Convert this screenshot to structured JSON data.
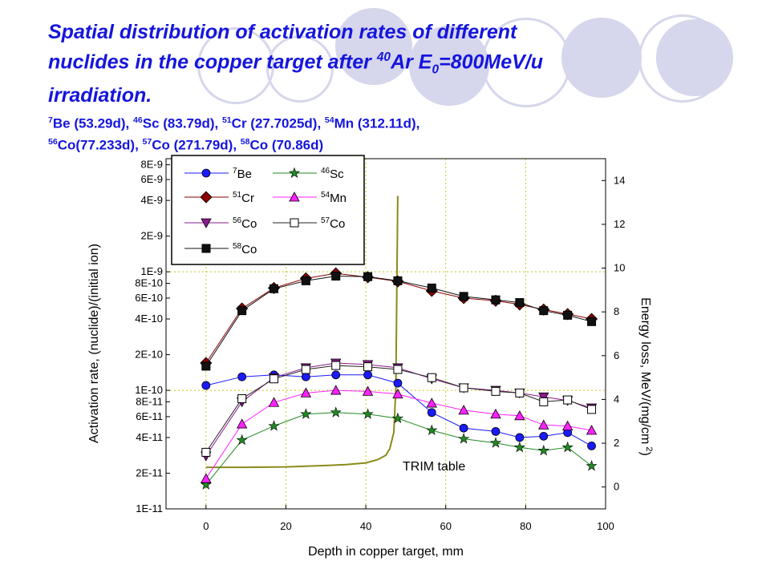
{
  "title": {
    "main_line1": "Spatial distribution of activation rates of different",
    "main_line2_a": "nuclides in the copper target after ",
    "main_line2_sup": "40",
    "main_line2_b": "Ar  E",
    "main_line2_sub": "0",
    "main_line2_c": "=800MeV/u",
    "main_line3": "irradiation.",
    "sub_line1": [
      {
        "sup": "7",
        "text": "Be (53.29d), "
      },
      {
        "sup": "46",
        "text": "Sc (83.79d), "
      },
      {
        "sup": "51",
        "text": "Cr (27.7025d), "
      },
      {
        "sup": "54",
        "text": "Mn (312.11d),"
      }
    ],
    "sub_line2": [
      {
        "sup": "56",
        "text": "Co(77.233d), "
      },
      {
        "sup": "57",
        "text": "Co (271.79d), "
      },
      {
        "sup": "58",
        "text": "Co (70.86d)"
      }
    ]
  },
  "chart_data": {
    "type": "scatter",
    "xlabel": "Depth in copper target, mm",
    "ylabel": "Activation rate, (nuclide)/(initial ion)",
    "y2label": "Energy loss, MeV/(mg/cm",
    "y2label_sup": "2",
    "y2label_end": ")",
    "xlim": [
      -10,
      100
    ],
    "ylim": [
      1e-11,
      9e-09
    ],
    "y_scale": "log",
    "y2lim": [
      -1,
      15
    ],
    "grid": true,
    "legend_position": "top-left",
    "x_ticks": [
      0,
      20,
      40,
      60,
      80,
      100
    ],
    "y_ticks": [
      {
        "v": 1e-11,
        "label": "1E-11"
      },
      {
        "v": 2e-11,
        "label": "2E-11"
      },
      {
        "v": 4e-11,
        "label": "4E-11"
      },
      {
        "v": 6e-11,
        "label": "6E-11"
      },
      {
        "v": 8e-11,
        "label": "8E-11"
      },
      {
        "v": 1e-10,
        "label": "1E-10"
      },
      {
        "v": 2e-10,
        "label": "2E-10"
      },
      {
        "v": 4e-10,
        "label": "4E-10"
      },
      {
        "v": 6e-10,
        "label": "6E-10"
      },
      {
        "v": 8e-10,
        "label": "8E-10"
      },
      {
        "v": 1e-09,
        "label": "1E-9"
      },
      {
        "v": 2e-09,
        "label": "2E-9"
      },
      {
        "v": 4e-09,
        "label": "4E-9"
      },
      {
        "v": 6e-09,
        "label": "6E-9"
      },
      {
        "v": 8e-09,
        "label": "8E-9"
      }
    ],
    "y2_ticks": [
      0,
      2,
      4,
      6,
      8,
      10,
      12,
      14
    ],
    "annotation": "TRIM table",
    "trim_curve": {
      "name": "TRIM table",
      "color": "#8b8b1a",
      "x": [
        0,
        10,
        20,
        30,
        35,
        40,
        43,
        45,
        46,
        47,
        47.5,
        48
      ],
      "y": [
        0.9,
        0.9,
        0.92,
        0.98,
        1.02,
        1.1,
        1.25,
        1.45,
        1.75,
        2.5,
        4.5,
        13.3
      ]
    },
    "series": [
      {
        "name": "Be",
        "sup": "7",
        "marker": "circle",
        "color": "#1a1aff",
        "filled": true,
        "x": [
          0,
          9,
          17,
          25,
          32.5,
          40.5,
          48,
          56.5,
          64.5,
          72.5,
          78.5,
          84.5,
          90.5,
          96.5
        ],
        "y": [
          1.1e-10,
          1.3e-10,
          1.35e-10,
          1.3e-10,
          1.35e-10,
          1.35e-10,
          1.15e-10,
          6.5e-11,
          4.8e-11,
          4.5e-11,
          4e-11,
          4.1e-11,
          4.4e-11,
          3.4e-11
        ]
      },
      {
        "name": "Sc",
        "sup": "46",
        "marker": "star",
        "color": "#228b22",
        "filled": true,
        "x": [
          0,
          9,
          17,
          25,
          32.5,
          40.5,
          48,
          56.5,
          64.5,
          72.5,
          78.5,
          84.5,
          90.5,
          96.5
        ],
        "y": [
          1.6e-11,
          3.8e-11,
          5e-11,
          6.3e-11,
          6.5e-11,
          6.3e-11,
          5.8e-11,
          4.6e-11,
          3.9e-11,
          3.6e-11,
          3.3e-11,
          3.1e-11,
          3.3e-11,
          2.3e-11
        ]
      },
      {
        "name": "Cr",
        "sup": "51",
        "marker": "diamond",
        "color": "#8b0000",
        "filled": true,
        "x": [
          0,
          9,
          17,
          25,
          32.5,
          40.5,
          48,
          56.5,
          64.5,
          72.5,
          78.5,
          84.5,
          90.5,
          96.5
        ],
        "y": [
          1.7e-10,
          4.9e-10,
          7.3e-10,
          8.8e-10,
          9.7e-10,
          9e-10,
          8.3e-10,
          6.9e-10,
          6e-10,
          5.7e-10,
          5.3e-10,
          4.8e-10,
          4.4e-10,
          4e-10
        ]
      },
      {
        "name": "Mn",
        "sup": "54",
        "marker": "triangle",
        "color": "#ff22ff",
        "filled": true,
        "x": [
          0,
          9,
          17,
          25,
          32.5,
          40.5,
          48,
          56.5,
          64.5,
          72.5,
          78.5,
          84.5,
          90.5,
          96.5
        ],
        "y": [
          1.8e-11,
          5.2e-11,
          7.9e-11,
          9.5e-11,
          1e-10,
          9.8e-11,
          9.3e-11,
          7.8e-11,
          6.8e-11,
          6.3e-11,
          6.1e-11,
          5.1e-11,
          5e-11,
          4.6e-11
        ]
      },
      {
        "name": "Co",
        "sup": "56",
        "marker": "triangle-down",
        "color": "#8b1a8b",
        "filled": true,
        "x": [
          0,
          9,
          17,
          25,
          32.5,
          40.5,
          48,
          56.5,
          64.5,
          72.5,
          78.5,
          84.5,
          90.5,
          96.5
        ],
        "y": [
          2.8e-11,
          8e-11,
          1.28e-10,
          1.55e-10,
          1.7e-10,
          1.65e-10,
          1.55e-10,
          1.25e-10,
          1.05e-10,
          1e-10,
          9.5e-11,
          8.8e-11,
          8.2e-11,
          7.1e-11
        ]
      },
      {
        "name": "Co",
        "sup": "57",
        "marker": "square",
        "color": "#222222",
        "filled": false,
        "x": [
          0,
          9,
          17,
          25,
          32.5,
          40.5,
          48,
          56.5,
          64.5,
          72.5,
          78.5,
          84.5,
          90.5,
          96.5
        ],
        "y": [
          3e-11,
          8.5e-11,
          1.25e-10,
          1.5e-10,
          1.62e-10,
          1.58e-10,
          1.5e-10,
          1.28e-10,
          1.05e-10,
          9.8e-11,
          9.5e-11,
          8e-11,
          8.3e-11,
          6.9e-11
        ]
      },
      {
        "name": "Co",
        "sup": "58",
        "marker": "square",
        "color": "#111111",
        "filled": true,
        "x": [
          0,
          9,
          17,
          25,
          32.5,
          40.5,
          48,
          56.5,
          64.5,
          72.5,
          78.5,
          84.5,
          90.5,
          96.5
        ],
        "y": [
          1.6e-10,
          4.7e-10,
          7.2e-10,
          8.4e-10,
          9.2e-10,
          9.1e-10,
          8.4e-10,
          7.3e-10,
          6.2e-10,
          5.8e-10,
          5.5e-10,
          4.7e-10,
          4.3e-10,
          3.8e-10
        ]
      }
    ]
  }
}
